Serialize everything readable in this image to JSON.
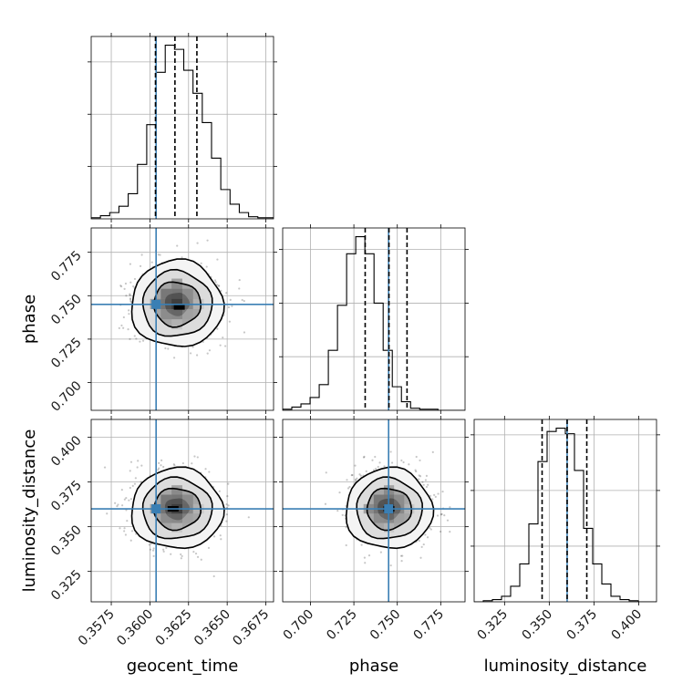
{
  "chart_data": {
    "type": "corner",
    "title": "",
    "parameters": [
      "geocent_time",
      "phase",
      "luminosity_distance"
    ],
    "truths": {
      "geocent_time": 0.3604,
      "phase": 0.745,
      "luminosity_distance": 0.36
    },
    "truth_color": "#3a7fb4",
    "axes": {
      "geocent_time": {
        "range": [
          0.3562,
          0.368
        ],
        "ticks": [
          0.3575,
          0.36,
          0.3625,
          0.365,
          0.3675
        ],
        "tick_labels": [
          "0.3575",
          "0.3600",
          "0.3625",
          "0.3650",
          "0.3675"
        ]
      },
      "phase": {
        "range": [
          0.684,
          0.789
        ],
        "ticks": [
          0.7,
          0.725,
          0.75,
          0.775
        ],
        "tick_labels": [
          "0.700",
          "0.725",
          "0.750",
          "0.775"
        ]
      },
      "luminosity_distance": {
        "range": [
          0.308,
          0.41
        ],
        "ticks": [
          0.325,
          0.35,
          0.375,
          0.4
        ],
        "tick_labels": [
          "0.325",
          "0.350",
          "0.375",
          "0.400"
        ]
      }
    },
    "histograms": {
      "geocent_time": {
        "bin_start": 0.3562,
        "bin_width": 0.000599,
        "counts": [
          1,
          3,
          6,
          12,
          24,
          52,
          90,
          140,
          166,
          162,
          142,
          120,
          92,
          58,
          28,
          14,
          6,
          2,
          1,
          1
        ],
        "quantiles": [
          0.36036,
          0.36162,
          0.36304
        ]
      },
      "phase": {
        "bin_start": 0.684,
        "bin_width": 0.00526,
        "counts": [
          1,
          3,
          6,
          12,
          24,
          56,
          98,
          146,
          162,
          146,
          100,
          56,
          22,
          8,
          2,
          1,
          1,
          0,
          0,
          0
        ],
        "quantiles": [
          0.7315,
          0.7452,
          0.7556
        ]
      },
      "luminosity_distance": {
        "bin_start": 0.308,
        "bin_width": 0.0051,
        "counts": [
          0,
          1,
          2,
          5,
          14,
          34,
          70,
          126,
          153,
          156,
          151,
          118,
          66,
          34,
          16,
          5,
          2,
          1,
          0,
          0
        ],
        "quantiles": [
          0.346,
          0.36,
          0.371
        ]
      }
    },
    "density_2d": {
      "geocent_time|phase": {
        "center": [
          0.36175,
          0.7452
        ],
        "sigma": [
          0.00145,
          0.0122
        ],
        "peak": [
          0.3619,
          0.7435
        ]
      },
      "geocent_time|luminosity_distance": {
        "center": [
          0.36175,
          0.36
        ],
        "sigma": [
          0.00145,
          0.011
        ],
        "peak": [
          0.3615,
          0.36
        ]
      },
      "phase|luminosity_distance": {
        "center": [
          0.7452,
          0.36
        ],
        "sigma": [
          0.0122,
          0.011
        ],
        "peak": [
          0.7452,
          0.36
        ]
      }
    }
  }
}
